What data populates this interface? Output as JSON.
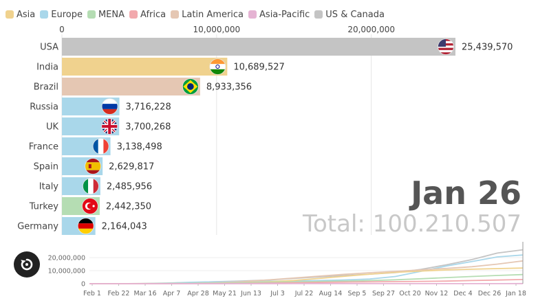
{
  "legend": [
    {
      "label": "Asia",
      "color": "#f0d28e"
    },
    {
      "label": "Europe",
      "color": "#a9d7ea"
    },
    {
      "label": "MENA",
      "color": "#b5ddb3"
    },
    {
      "label": "Africa",
      "color": "#f2a9ad"
    },
    {
      "label": "Latin America",
      "color": "#e5c7b3"
    },
    {
      "label": "Asia-Pacific",
      "color": "#e5b3d3"
    },
    {
      "label": "US & Canada",
      "color": "#c4c4c4"
    }
  ],
  "date": "Jan 26",
  "total_text": "Total: 100.210.507",
  "chart_data": [
    {
      "type": "bar",
      "orientation": "horizontal",
      "xlim": [
        0,
        25439570
      ],
      "x_ticks": [
        0,
        10000000,
        20000000
      ],
      "x_tick_labels": [
        "0",
        "10,000,000",
        "20,000,000"
      ],
      "grid": true,
      "categories": [
        "USA",
        "India",
        "Brazil",
        "Russia",
        "UK",
        "France",
        "Spain",
        "Italy",
        "Turkey",
        "Germany"
      ],
      "values": [
        25439570,
        10689527,
        8933356,
        3716228,
        3700268,
        3138498,
        2629817,
        2485956,
        2442350,
        2164043
      ],
      "value_labels": [
        "25,439,570",
        "10,689,527",
        "8,933,356",
        "3,716,228",
        "3,700,268",
        "3,138,498",
        "2,629,817",
        "2,485,956",
        "2,442,350",
        "2,164,043"
      ],
      "regions": [
        "US & Canada",
        "Asia",
        "Latin America",
        "Europe",
        "Europe",
        "Europe",
        "Europe",
        "Europe",
        "MENA",
        "Europe"
      ],
      "flags": [
        "usa-flag-icon",
        "india-flag-icon",
        "brazil-flag-icon",
        "russia-flag-icon",
        "uk-flag-icon",
        "france-flag-icon",
        "spain-flag-icon",
        "italy-flag-icon",
        "turkey-flag-icon",
        "germany-flag-icon"
      ]
    },
    {
      "type": "line",
      "ylim": [
        0,
        30000000
      ],
      "y_ticks": [
        0,
        10000000,
        20000000
      ],
      "y_tick_labels": [
        "0",
        "10,000,000",
        "20,000,000"
      ],
      "x_tick_labels": [
        "Feb 1",
        "Feb 22",
        "Mar 16",
        "Apr 7",
        "Apr 28",
        "May 21",
        "Jun 13",
        "Jul 3",
        "Jul 22",
        "Aug 14",
        "Sep 5",
        "Sep 27",
        "Oct 20",
        "Nov 12",
        "Dec 4",
        "Dec 26",
        "Jan 18"
      ],
      "x_index": [
        0,
        1,
        2,
        3,
        4,
        5,
        6,
        7,
        8,
        9,
        10,
        11,
        12,
        13,
        14,
        15,
        16,
        17
      ],
      "series": [
        {
          "region": "US & Canada",
          "values": [
            0,
            0,
            50000,
            300000,
            1000000,
            1600000,
            2100000,
            2800000,
            4000000,
            5200000,
            6300000,
            7300000,
            8500000,
            11000000,
            14500000,
            18500000,
            23500000,
            26000000
          ]
        },
        {
          "region": "Europe",
          "values": [
            0,
            0,
            80000,
            500000,
            1100000,
            1500000,
            1700000,
            1900000,
            2100000,
            2400000,
            2900000,
            3600000,
            5500000,
            9500000,
            13500000,
            17000000,
            20500000,
            22000000
          ]
        },
        {
          "region": "Asia",
          "values": [
            0,
            0,
            100000,
            200000,
            300000,
            500000,
            900000,
            1500000,
            2500000,
            4000000,
            5700000,
            7300000,
            8700000,
            9700000,
            10500000,
            11100000,
            11600000,
            12000000
          ]
        },
        {
          "region": "Latin America",
          "values": [
            0,
            0,
            0,
            50000,
            300000,
            800000,
            1600000,
            2900000,
            4300000,
            5800000,
            7200000,
            8400000,
            9500000,
            10600000,
            11700000,
            13000000,
            15000000,
            17500000
          ]
        },
        {
          "region": "MENA",
          "values": [
            0,
            0,
            10000,
            100000,
            300000,
            500000,
            800000,
            1100000,
            1400000,
            1700000,
            2000000,
            2400000,
            3000000,
            3800000,
            4700000,
            5500000,
            6300000,
            7000000
          ]
        },
        {
          "region": "Africa",
          "values": [
            0,
            0,
            0,
            10000,
            30000,
            100000,
            200000,
            400000,
            700000,
            1000000,
            1200000,
            1400000,
            1600000,
            1800000,
            2000000,
            2400000,
            2800000,
            3200000
          ]
        },
        {
          "region": "Asia-Pacific",
          "values": [
            0,
            0,
            0,
            5000,
            10000,
            12000,
            15000,
            20000,
            30000,
            40000,
            45000,
            50000,
            55000,
            60000,
            65000,
            70000,
            75000,
            80000
          ]
        }
      ]
    }
  ]
}
